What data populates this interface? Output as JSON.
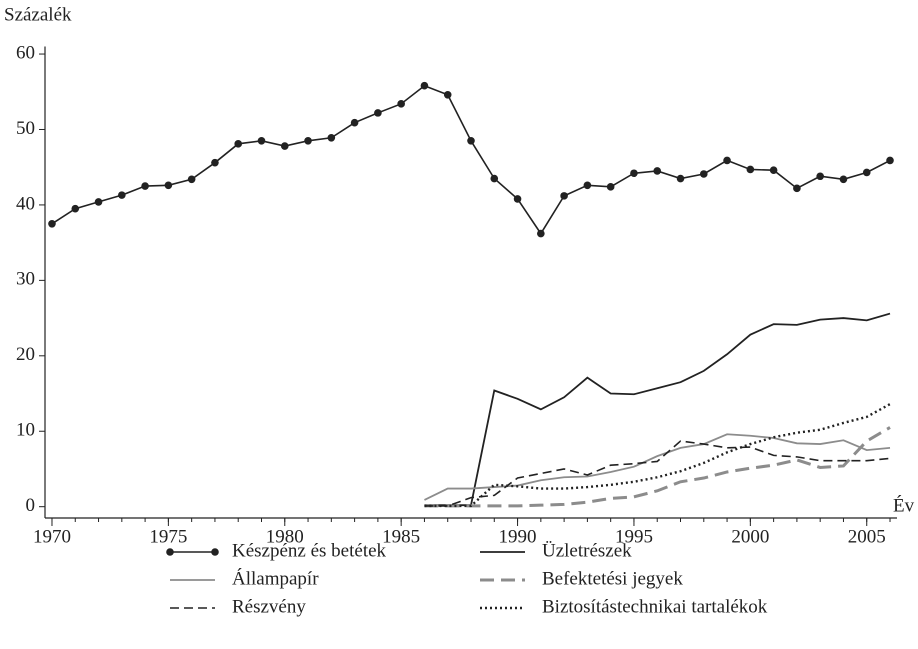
{
  "chart_data": {
    "type": "line",
    "y_label": "Százalék",
    "x_label": "Év",
    "x": [
      1970,
      1971,
      1972,
      1973,
      1974,
      1975,
      1976,
      1977,
      1978,
      1979,
      1980,
      1981,
      1982,
      1983,
      1984,
      1985,
      1986,
      1987,
      1988,
      1989,
      1990,
      1991,
      1992,
      1993,
      1994,
      1995,
      1996,
      1997,
      1998,
      1999,
      2000,
      2001,
      2002,
      2003,
      2004,
      2005,
      2006
    ],
    "xlim": [
      1969.7,
      2006.3
    ],
    "xticks": [
      1970,
      1975,
      1980,
      1985,
      1990,
      1995,
      2000,
      2005
    ],
    "ylim": [
      -1.5,
      61
    ],
    "yticks": [
      0,
      10,
      20,
      30,
      40,
      50,
      60
    ],
    "series": [
      {
        "name": "Készpénz és betétek",
        "color": "#222222",
        "style": "solid-marker",
        "values": [
          37.5,
          39.5,
          40.4,
          41.3,
          42.5,
          42.6,
          43.4,
          45.6,
          48.1,
          48.5,
          47.8,
          48.5,
          48.9,
          50.9,
          52.2,
          53.4,
          55.8,
          54.6,
          48.5,
          43.5,
          40.8,
          36.2,
          41.2,
          42.6,
          42.4,
          44.2,
          44.5,
          43.5,
          44.1,
          45.9,
          44.7,
          44.6,
          42.2,
          43.8,
          43.4,
          44.3,
          45.9
        ]
      },
      {
        "name": "Üzletrészek",
        "color": "#222222",
        "style": "solid",
        "values": [
          null,
          null,
          null,
          null,
          null,
          null,
          null,
          null,
          null,
          null,
          null,
          null,
          null,
          null,
          null,
          null,
          0.2,
          0.2,
          0.2,
          15.4,
          14.3,
          12.9,
          14.5,
          17.1,
          15.0,
          14.9,
          15.7,
          16.5,
          18.0,
          20.2,
          22.8,
          24.2,
          24.1,
          24.8,
          25.0,
          24.7,
          25.6
        ]
      },
      {
        "name": "Állampapír",
        "color": "#8c8c8c",
        "style": "solid",
        "values": [
          null,
          null,
          null,
          null,
          null,
          null,
          null,
          null,
          null,
          null,
          null,
          null,
          null,
          null,
          null,
          null,
          0.9,
          2.4,
          2.4,
          2.6,
          2.8,
          3.5,
          3.9,
          4.0,
          4.6,
          5.3,
          6.7,
          7.8,
          8.3,
          9.6,
          9.4,
          9.1,
          8.4,
          8.3,
          8.8,
          7.5,
          7.8
        ]
      },
      {
        "name": "Befektetési jegyek",
        "color": "#8c8c8c",
        "style": "longdash",
        "values": [
          null,
          null,
          null,
          null,
          null,
          null,
          null,
          null,
          null,
          null,
          null,
          null,
          null,
          null,
          null,
          null,
          0.1,
          0.1,
          0.1,
          0.1,
          0.1,
          0.2,
          0.3,
          0.6,
          1.1,
          1.3,
          2.1,
          3.3,
          3.8,
          4.6,
          5.1,
          5.5,
          6.2,
          5.2,
          5.4,
          8.7,
          10.5
        ]
      },
      {
        "name": "Részvény",
        "color": "#222222",
        "style": "dash",
        "values": [
          null,
          null,
          null,
          null,
          null,
          null,
          null,
          null,
          null,
          null,
          null,
          null,
          null,
          null,
          null,
          null,
          0.1,
          0.1,
          1.2,
          1.5,
          3.8,
          4.4,
          5.0,
          4.2,
          5.5,
          5.7,
          6.0,
          8.7,
          8.3,
          7.8,
          7.9,
          6.8,
          6.6,
          6.1,
          6.1,
          6.1,
          6.4
        ]
      },
      {
        "name": "Biztosítástechnikai tartalékok",
        "color": "#222222",
        "style": "dot",
        "values": [
          null,
          null,
          null,
          null,
          null,
          null,
          null,
          null,
          null,
          null,
          null,
          null,
          null,
          null,
          null,
          null,
          0.1,
          0.1,
          0.1,
          2.9,
          2.7,
          2.4,
          2.4,
          2.6,
          2.9,
          3.3,
          3.9,
          4.7,
          5.8,
          7.2,
          8.3,
          9.2,
          9.8,
          10.2,
          11.1,
          11.9,
          13.6
        ]
      }
    ]
  }
}
